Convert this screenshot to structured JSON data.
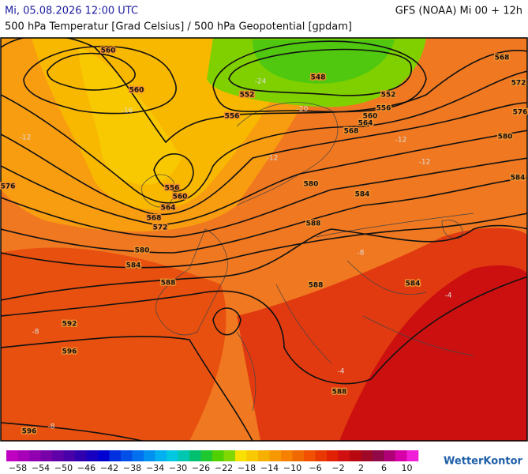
{
  "header": {
    "title": "Mi, 05.08.2026 12:00 UTC",
    "model": "GFS (NOAA) Mi 00 + 12h",
    "subtitle": "500 hPa Temperatur [Grad Celsius] / 500 hPa Geopotential [gpdam]"
  },
  "contour_labels": [
    "560",
    "560",
    "556",
    "552",
    "548",
    "552",
    "556",
    "560",
    "564",
    "568",
    "568",
    "572",
    "576",
    "580",
    "584",
    "584",
    "580",
    "576",
    "556",
    "560",
    "564",
    "568",
    "572",
    "580",
    "584",
    "588",
    "588",
    "588",
    "584",
    "592",
    "596",
    "588",
    "596"
  ],
  "isotherm_labels": [
    "-24",
    "-20",
    "-16",
    "-12",
    "-12",
    "-12",
    "-12",
    "-8",
    "-8",
    "-8",
    "-4",
    "-4"
  ],
  "legend": {
    "labels": [
      "−58",
      "−54",
      "−50",
      "−46",
      "−42",
      "−38",
      "−34",
      "−30",
      "−26",
      "−22",
      "−18",
      "−14",
      "−10",
      "−6",
      "−2",
      "2",
      "6",
      "10"
    ],
    "colors": [
      "#c000c0",
      "#a800b8",
      "#9000b0",
      "#7800a8",
      "#6000a8",
      "#4800a8",
      "#3000b0",
      "#1800c0",
      "#0000d0",
      "#0030e0",
      "#0050e8",
      "#0070f0",
      "#0090f0",
      "#00b0f0",
      "#00c8e0",
      "#00c8b0",
      "#00c070",
      "#20c830",
      "#50d000",
      "#80d800",
      "#f8e000",
      "#f8c800",
      "#f8b000",
      "#f89800",
      "#f88000",
      "#f06800",
      "#f05000",
      "#e83800",
      "#e02000",
      "#d01010",
      "#b80810",
      "#a00828",
      "#900848",
      "#b00078",
      "#d800a8",
      "#f020d8"
    ]
  },
  "brand": "WetterKontor"
}
